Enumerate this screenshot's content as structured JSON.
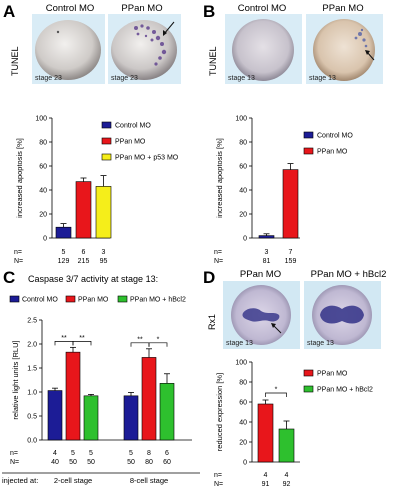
{
  "panel_a": {
    "label": "A",
    "col1_title": "Control MO",
    "col2_title": "PPan MO",
    "row_label": "TUNEL",
    "stage1": "stage 23",
    "stage2": "stage 23"
  },
  "panel_b": {
    "label": "B",
    "col1_title": "Control MO",
    "col2_title": "PPan MO",
    "row_label": "TUNEL",
    "stage1": "stage 13",
    "stage2": "stage 13"
  },
  "panel_c": {
    "label": "C",
    "title": "Caspase 3/7 activity at stage 13:",
    "injected_label": "injected at:",
    "group1_label": "2-cell stage",
    "group2_label": "8-cell stage"
  },
  "panel_d": {
    "label": "D",
    "col1_title": "PPan MO",
    "col2_title": "PPan MO + hBcl2",
    "row_label": "Rx1",
    "stage1": "stage 13",
    "stage2": "stage 13"
  },
  "chart_data": [
    {
      "panel": "A",
      "type": "bar",
      "ylabel": "increased apoptosis [%]",
      "ylim": [
        0,
        100
      ],
      "yticks": [
        0,
        20,
        40,
        60,
        80,
        100
      ],
      "series": [
        {
          "name": "Control MO",
          "color": "#1c1c96",
          "value": 9,
          "error": 3
        },
        {
          "name": "PPan MO",
          "color": "#e8161b",
          "value": 47,
          "error": 3
        },
        {
          "name": "PPan MO + p53 MO",
          "color": "#f5ee1a",
          "value": 43,
          "error": 9
        }
      ],
      "n_label": "n=",
      "N_label": "N=",
      "n_values": [
        "5",
        "6",
        "3"
      ],
      "N_values": [
        "129",
        "215",
        "95"
      ]
    },
    {
      "panel": "B",
      "type": "bar",
      "ylabel": "increased apoptosis [%]",
      "ylim": [
        0,
        100
      ],
      "yticks": [
        0,
        20,
        40,
        60,
        80,
        100
      ],
      "series": [
        {
          "name": "Control MO",
          "color": "#1c1c96",
          "value": 2,
          "error": 1.5
        },
        {
          "name": "PPan MO",
          "color": "#e8161b",
          "value": 57,
          "error": 5
        }
      ],
      "n_label": "n=",
      "N_label": "N=",
      "n_values": [
        "3",
        "7"
      ],
      "N_values": [
        "81",
        "159"
      ]
    },
    {
      "panel": "C",
      "type": "bar",
      "ylabel": "relative light units [RLU]",
      "ylim": [
        0,
        2.5
      ],
      "yticks": [
        "0.0",
        "0.5",
        "1.0",
        "1.5",
        "2.0",
        "2.5"
      ],
      "legend": [
        {
          "name": "Control MO",
          "color": "#1c1c96"
        },
        {
          "name": "PPan MO",
          "color": "#e8161b"
        },
        {
          "name": "PPan MO + hBcl2",
          "color": "#2ec02e"
        }
      ],
      "groups": [
        {
          "label": "2-cell stage",
          "values": [
            1.03,
            1.83,
            0.92
          ],
          "errors": [
            0.05,
            0.1,
            0.03
          ],
          "n_values": [
            "4",
            "5",
            "5"
          ],
          "N_values": [
            "40",
            "50",
            "50"
          ],
          "sig": [
            {
              "from": 0,
              "to": 1,
              "text": "**"
            },
            {
              "from": 1,
              "to": 2,
              "text": "**"
            }
          ]
        },
        {
          "label": "8-cell stage",
          "values": [
            0.92,
            1.72,
            1.18
          ],
          "errors": [
            0.07,
            0.18,
            0.2
          ],
          "n_values": [
            "5",
            "8",
            "6"
          ],
          "N_values": [
            "50",
            "80",
            "60"
          ],
          "sig": [
            {
              "from": 0,
              "to": 1,
              "text": "**"
            },
            {
              "from": 1,
              "to": 2,
              "text": "*"
            }
          ]
        }
      ],
      "n_label": "n=",
      "N_label": "N="
    },
    {
      "panel": "D",
      "type": "bar",
      "ylabel": "reduced expression [%]",
      "ylim": [
        0,
        100
      ],
      "yticks": [
        0,
        20,
        40,
        60,
        80,
        100
      ],
      "series": [
        {
          "name": "PPan MO",
          "color": "#e8161b",
          "value": 58,
          "error": 4
        },
        {
          "name": "PPan MO + hBcl2",
          "color": "#2ec02e",
          "value": 33,
          "error": 8
        }
      ],
      "sig": {
        "text": "*"
      },
      "n_label": "n=",
      "N_label": "N=",
      "n_values": [
        "4",
        "4"
      ],
      "N_values": [
        "91",
        "92"
      ]
    }
  ]
}
